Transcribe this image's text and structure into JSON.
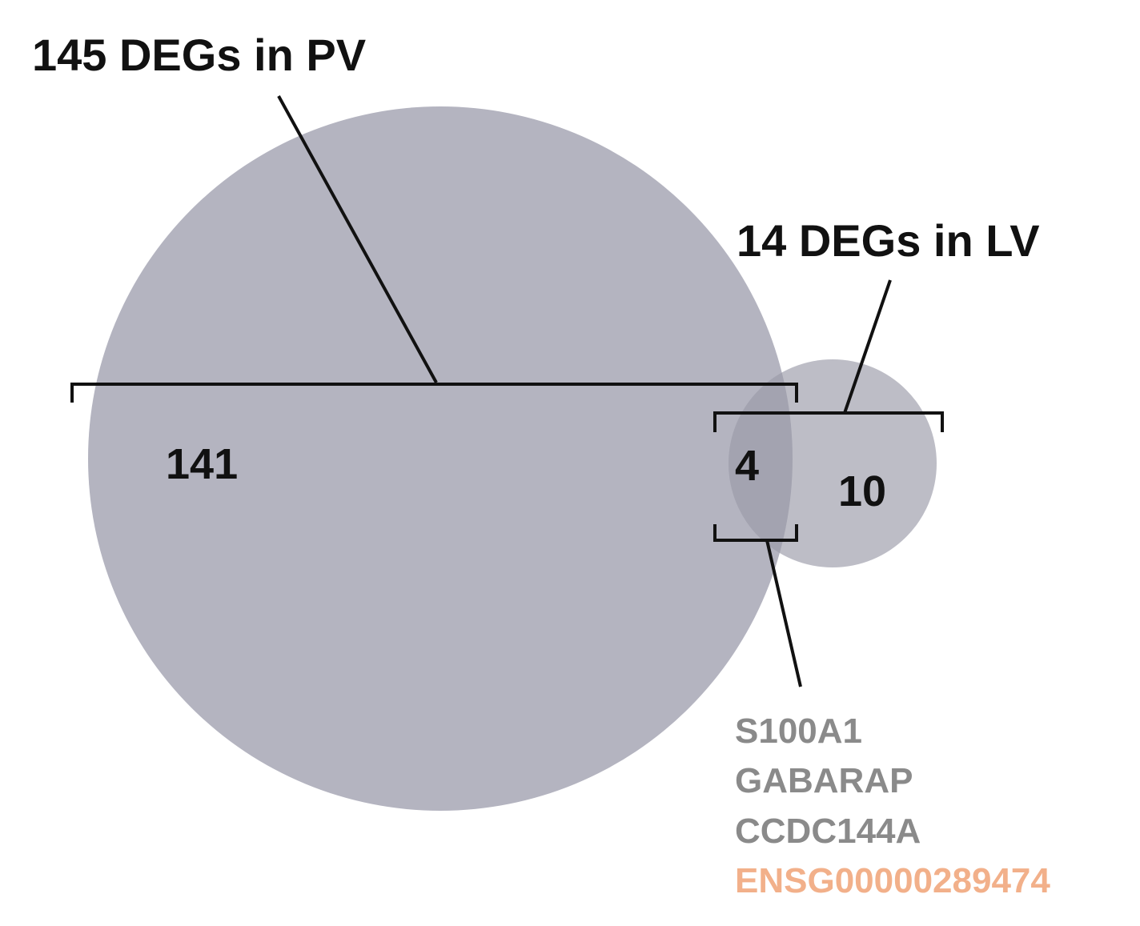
{
  "sets": [
    {
      "label": "145 DEGs in PV"
    },
    {
      "label": "14 DEGs in LV"
    }
  ],
  "regions": {
    "pv_only": "141",
    "shared": "4",
    "lv_only": "10"
  },
  "shared_genes": [
    "S100A1",
    "GABARAP",
    "CCDC144A",
    "ENSG00000289474"
  ]
}
